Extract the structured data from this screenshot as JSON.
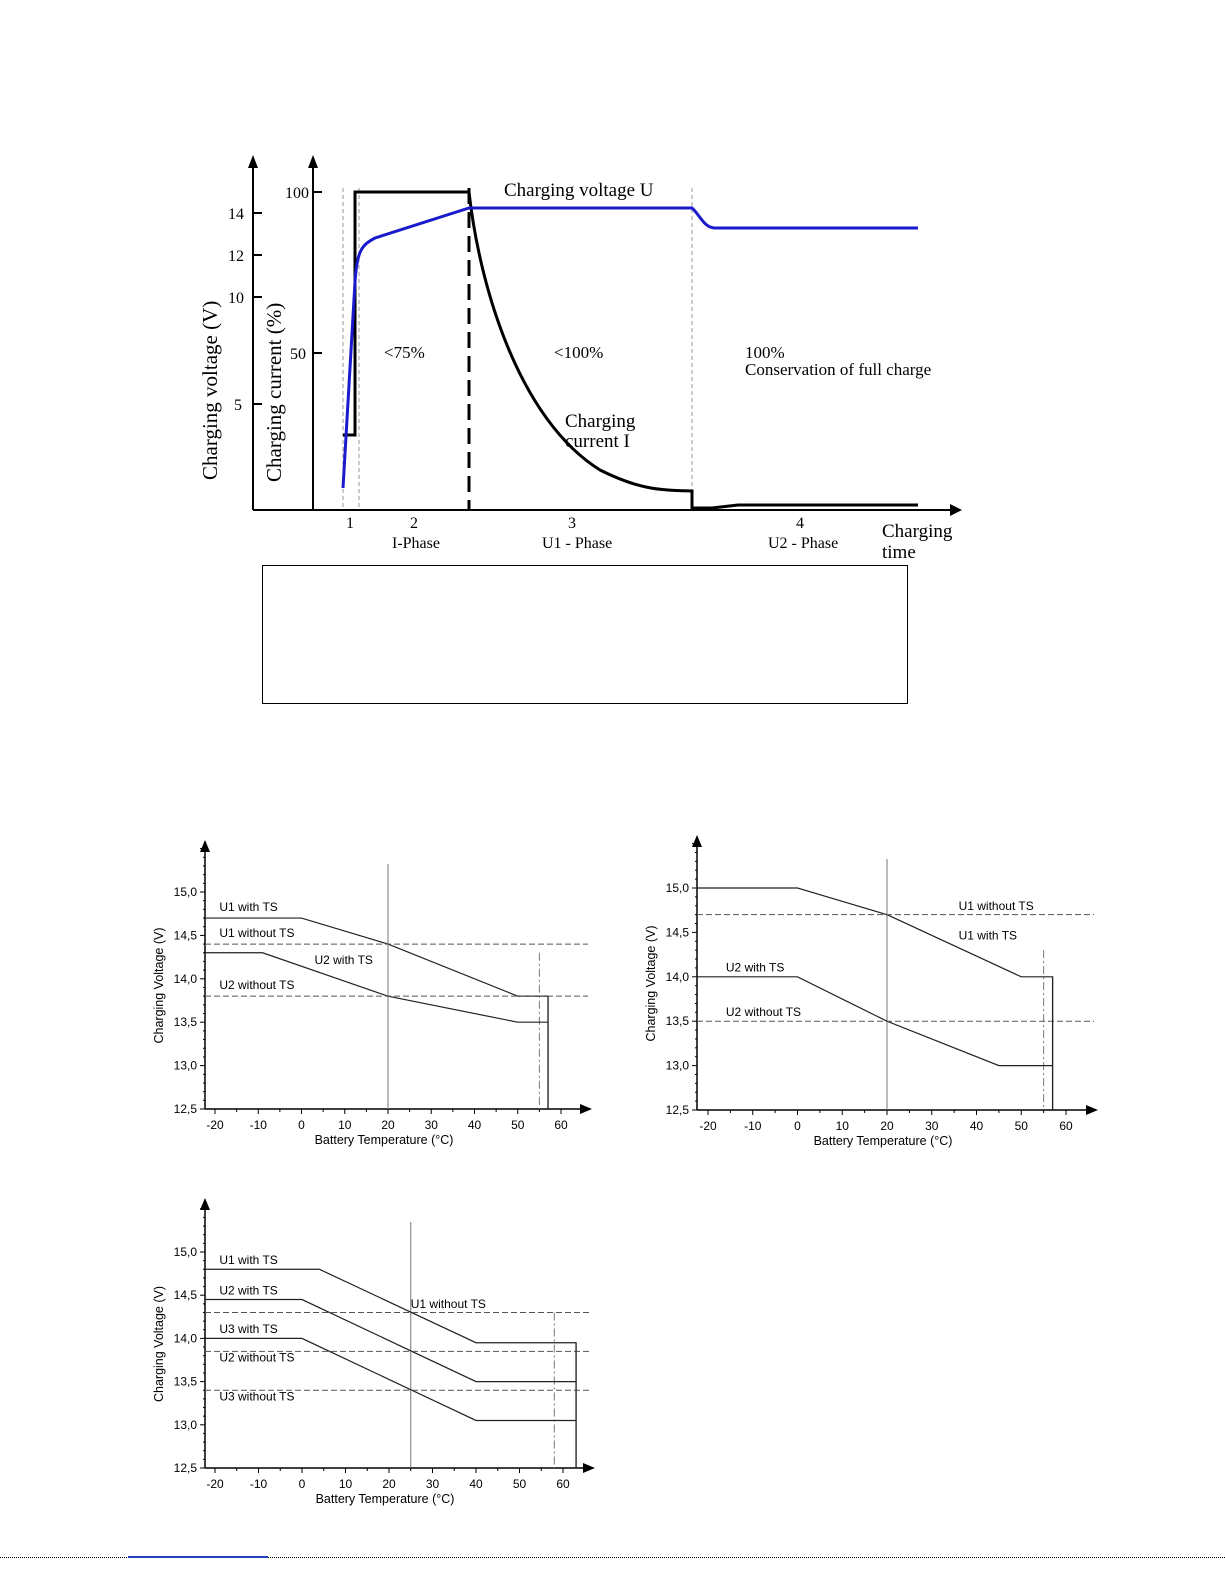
{
  "colors": {
    "voltage": "#1a1acc",
    "current": "#000000",
    "axis": "#000000",
    "dash": "#777777"
  },
  "charging_diagram": {
    "ylabel_voltage": "Charging voltage (V)",
    "ylabel_current": "Charging current  (%)",
    "voltage_ticks": [
      "14",
      "12",
      "10",
      "5"
    ],
    "current_ticks": [
      "100",
      "50"
    ],
    "title_voltage": "Charging voltage  U",
    "title_current_line1": "Charging",
    "title_current_line2": "current  I",
    "state_1": "<75%",
    "state_2": "<100%",
    "state_3_line1": "100%",
    "state_3_line2": "Conservation of full charge",
    "phase_1": "1",
    "phase_2_num": "2",
    "phase_2_name": "I-Phase",
    "phase_3_num": "3",
    "phase_3_name": "U1 - Phase",
    "phase_4_num": "4",
    "phase_4_name": "U2 - Phase",
    "xlabel_line1": "Charging",
    "xlabel_line2": "time"
  },
  "chart_data": [
    {
      "type": "line",
      "ylabel": "Charging Voltage  (V)",
      "xlabel": "Battery Temperature (°C)",
      "xlim": [
        -22,
        67
      ],
      "ylim": [
        12.5,
        15.5
      ],
      "xticks": [
        "-20",
        "-10",
        "0",
        "10",
        "20",
        "30",
        "40",
        "50",
        "60"
      ],
      "yticks": [
        "12,5",
        "13,0",
        "13,5",
        "14,0",
        "14,5",
        "15,0"
      ],
      "vline": 20,
      "cutoff_dashdot": 55,
      "cutoff_solid": 57,
      "series": [
        {
          "name": "U1 with TS",
          "style": "solid",
          "x": [
            -22,
            0,
            20,
            50,
            57,
            57
          ],
          "y": [
            14.7,
            14.7,
            14.4,
            13.8,
            13.8,
            12.5
          ]
        },
        {
          "name": "U1 without TS",
          "style": "dashed",
          "x": [
            -22,
            67
          ],
          "y": [
            14.4,
            14.4
          ]
        },
        {
          "name": "U2 with TS",
          "style": "solid",
          "x": [
            -22,
            -9,
            20,
            50,
            57
          ],
          "y": [
            14.3,
            14.3,
            13.8,
            13.5,
            13.5
          ]
        },
        {
          "name": "U2 without TS",
          "style": "dashed",
          "x": [
            -22,
            67
          ],
          "y": [
            13.8,
            13.8
          ]
        }
      ],
      "labels": [
        {
          "text": "U1 with TS",
          "x": -19,
          "y": 14.78
        },
        {
          "text": "U1 without TS",
          "x": -19,
          "y": 14.48
        },
        {
          "text": "U2 with TS",
          "x": 3,
          "y": 14.17
        },
        {
          "text": "U2 without TS",
          "x": -19,
          "y": 13.88
        }
      ]
    },
    {
      "type": "line",
      "ylabel": "Charging Voltage (V)",
      "xlabel": "Battery Temperature (°C)",
      "xlim": [
        -22,
        67
      ],
      "ylim": [
        12.5,
        15.5
      ],
      "xticks": [
        "-20",
        "-10",
        "0",
        "10",
        "20",
        "30",
        "40",
        "50",
        "60"
      ],
      "yticks": [
        "12,5",
        "13,0",
        "13,5",
        "14,0",
        "14,5",
        "15,0"
      ],
      "vline": 20,
      "cutoff_dashdot": 55,
      "cutoff_solid": 57,
      "series": [
        {
          "name": "U1 with TS",
          "style": "solid",
          "x": [
            -22,
            0,
            20,
            50,
            57,
            57
          ],
          "y": [
            15.0,
            15.0,
            14.7,
            14.0,
            14.0,
            12.5
          ]
        },
        {
          "name": "U1 without TS",
          "style": "dashed",
          "x": [
            -22,
            67
          ],
          "y": [
            14.7,
            14.7
          ]
        },
        {
          "name": "U2 with TS",
          "style": "solid",
          "x": [
            -22,
            0,
            20,
            45,
            57
          ],
          "y": [
            14.0,
            14.0,
            13.5,
            13.0,
            13.0
          ]
        },
        {
          "name": "U2 without TS",
          "style": "dashed",
          "x": [
            -22,
            67
          ],
          "y": [
            13.5,
            13.5
          ]
        }
      ],
      "labels": [
        {
          "text": "U1 without TS",
          "x": 36,
          "y": 14.75
        },
        {
          "text": "U1 with TS",
          "x": 36,
          "y": 14.42
        },
        {
          "text": "U2 with TS",
          "x": -16,
          "y": 14.06
        },
        {
          "text": "U2 without TS",
          "x": -16,
          "y": 13.56
        }
      ]
    },
    {
      "type": "line",
      "ylabel": "Charging Voltage (V)",
      "xlabel": "Battery Temperature (°C)",
      "xlim": [
        -22,
        67
      ],
      "ylim": [
        12.5,
        15.5
      ],
      "xticks": [
        "-20",
        "-10",
        "0",
        "10",
        "20",
        "30",
        "40",
        "50",
        "60"
      ],
      "yticks": [
        "12,5",
        "13,0",
        "13,5",
        "14,0",
        "14,5",
        "15,0"
      ],
      "vline": 25,
      "cutoff_dashdot": 58,
      "cutoff_solid": 63,
      "series": [
        {
          "name": "U1 with TS",
          "style": "solid",
          "x": [
            -22,
            4,
            40,
            63,
            63
          ],
          "y": [
            14.8,
            14.8,
            13.95,
            13.95,
            12.5
          ]
        },
        {
          "name": "U2 with TS",
          "style": "solid",
          "x": [
            -22,
            0,
            40,
            63
          ],
          "y": [
            14.45,
            14.45,
            13.5,
            13.5
          ]
        },
        {
          "name": "U3 with TS",
          "style": "solid",
          "x": [
            -22,
            0,
            40,
            63
          ],
          "y": [
            14.0,
            14.0,
            13.05,
            13.05
          ]
        },
        {
          "name": "U1 without TS",
          "style": "dashed",
          "x": [
            -22,
            67
          ],
          "y": [
            14.3,
            14.3
          ]
        },
        {
          "name": "U2 without TS",
          "style": "dashed",
          "x": [
            -22,
            67
          ],
          "y": [
            13.85,
            13.85
          ]
        },
        {
          "name": "U3 without TS",
          "style": "dashed",
          "x": [
            -22,
            67
          ],
          "y": [
            13.4,
            13.4
          ]
        }
      ],
      "labels": [
        {
          "text": "U1 with TS",
          "x": -19,
          "y": 14.86
        },
        {
          "text": "U2 with TS",
          "x": -19,
          "y": 14.51
        },
        {
          "text": "U1 without TS",
          "x": 25,
          "y": 14.35
        },
        {
          "text": "U3 with TS",
          "x": -19,
          "y": 14.06
        },
        {
          "text": "U2 without TS",
          "x": -19,
          "y": 13.73
        },
        {
          "text": "U3 without TS",
          "x": -19,
          "y": 13.28
        }
      ]
    }
  ]
}
